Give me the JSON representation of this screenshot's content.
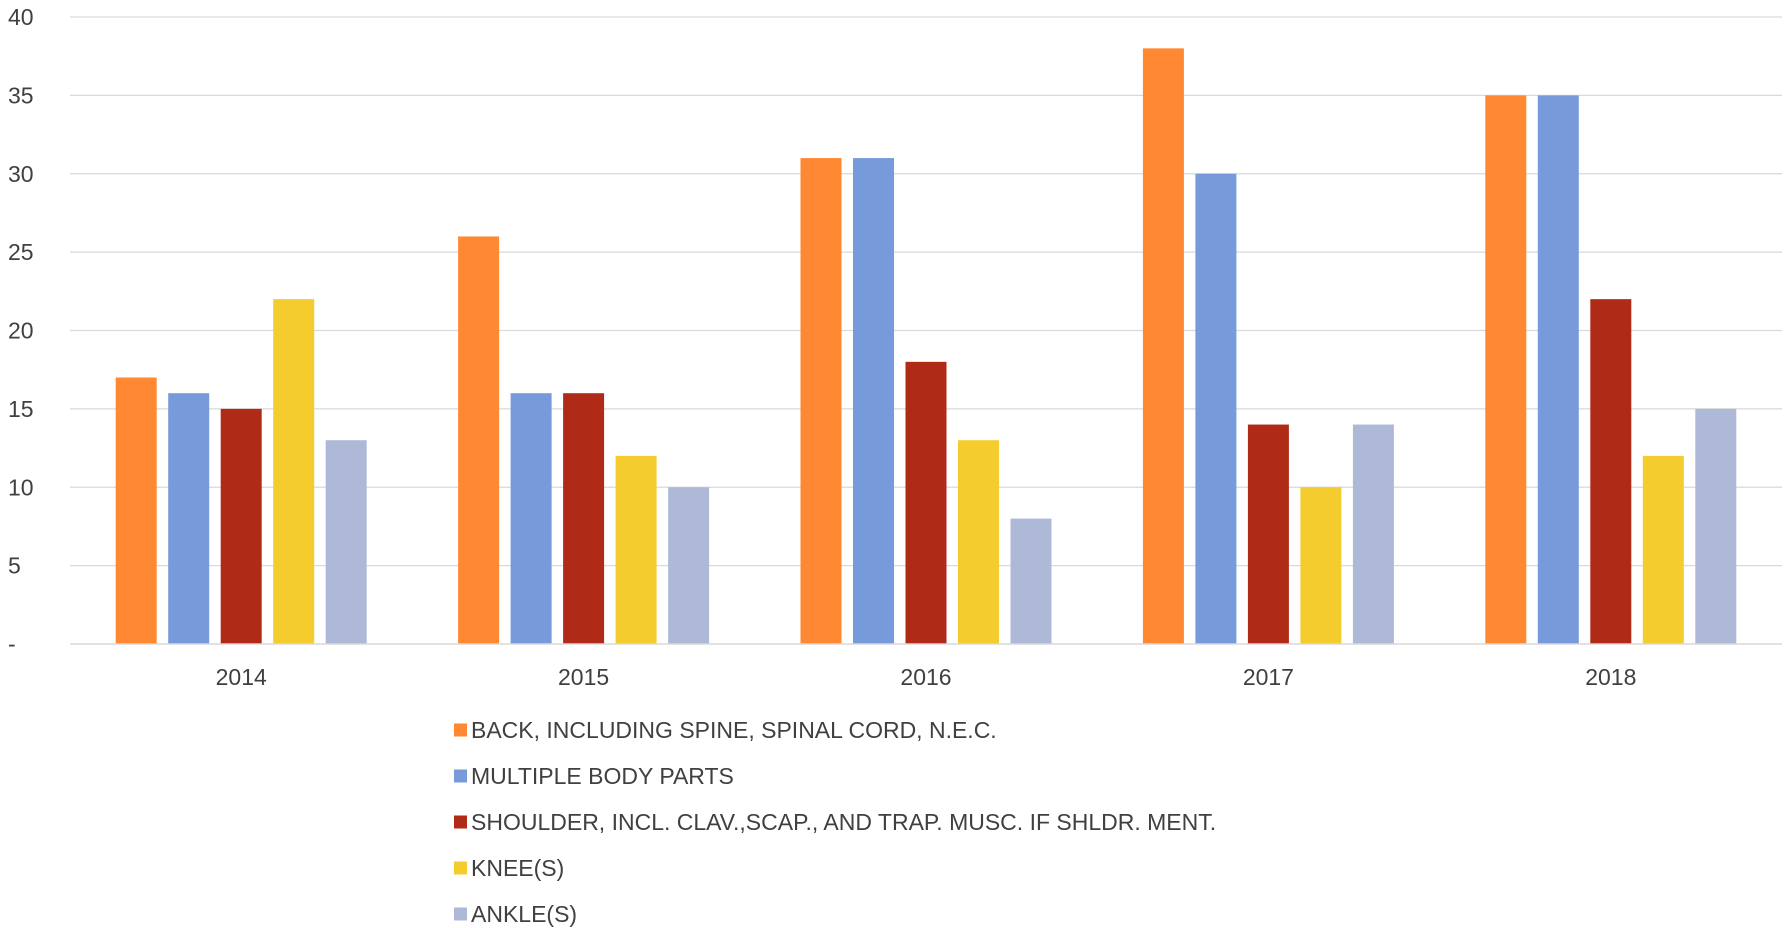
{
  "chart_data": {
    "type": "bar",
    "categories": [
      "2014",
      "2015",
      "2016",
      "2017",
      "2018"
    ],
    "series": [
      {
        "name": "BACK, INCLUDING SPINE, SPINAL CORD, N.E.C.",
        "color": "#FF8833",
        "values": [
          17,
          26,
          31,
          38,
          35
        ]
      },
      {
        "name": "MULTIPLE BODY PARTS",
        "color": "#779ADA",
        "values": [
          16,
          16,
          31,
          30,
          35
        ]
      },
      {
        "name": "SHOULDER, INCL. CLAV.,SCAP., AND TRAP. MUSC. IF SHLDR. MENT.",
        "color": "#B02A18",
        "values": [
          15,
          16,
          18,
          14,
          22
        ]
      },
      {
        "name": "KNEE(S)",
        "color": "#F5CC2D",
        "values": [
          22,
          12,
          13,
          10,
          12
        ]
      },
      {
        "name": "ANKLE(S)",
        "color": "#ADB9D6",
        "values": [
          13,
          10,
          8,
          14,
          15
        ]
      }
    ],
    "y_ticks": [
      "-",
      "5",
      "10",
      "15",
      "20",
      "25",
      "30",
      "35",
      "40"
    ],
    "ylim": [
      0,
      40
    ],
    "title": "",
    "xlabel": "",
    "ylabel": "",
    "grid": true,
    "legend_position": "bottom"
  }
}
